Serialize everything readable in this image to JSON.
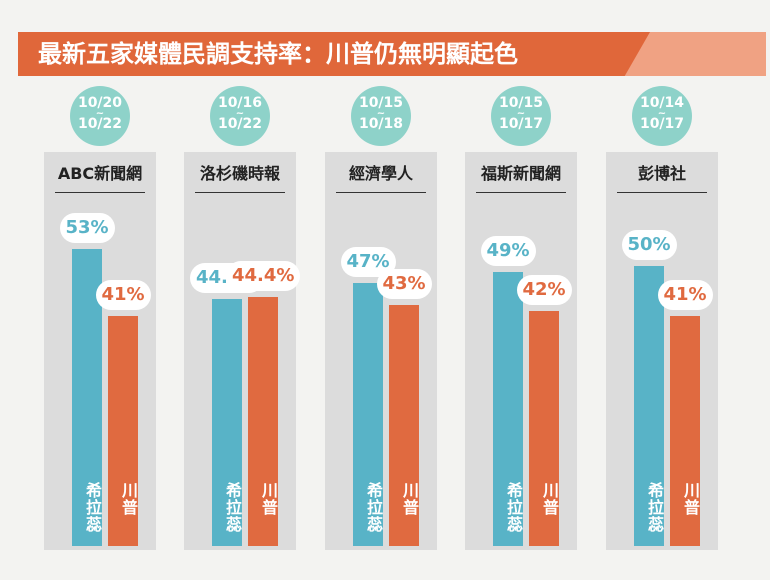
{
  "title": "最新五家媒體民調支持率：川普仍無明顯起色",
  "colors": {
    "clinton": "#58b3c7",
    "trump": "#e06a40",
    "banner": "#e0673a",
    "badge": "#8ed2c9"
  },
  "chart_data": {
    "type": "bar",
    "title": "最新五家媒體民調支持率：川普仍無明顯起色",
    "ylabel": "",
    "categories": [
      "ABC新聞網",
      "洛杉磯時報",
      "經濟學人",
      "福斯新聞網",
      "彭博社"
    ],
    "dates": [
      {
        "from": "10/20",
        "sep": "~",
        "to": "10/22"
      },
      {
        "from": "10/16",
        "sep": "~",
        "to": "10/22"
      },
      {
        "from": "10/15",
        "sep": "~",
        "to": "10/18"
      },
      {
        "from": "10/15",
        "sep": "~",
        "to": "10/17"
      },
      {
        "from": "10/14",
        "sep": "~",
        "to": "10/17"
      }
    ],
    "series": [
      {
        "name": "希拉蕊",
        "values": [
          53,
          44.1,
          47,
          49,
          50
        ],
        "labels": [
          "53%",
          "44.1%",
          "47%",
          "49%",
          "50%"
        ]
      },
      {
        "name": "川普",
        "values": [
          41,
          44.4,
          43,
          42,
          41
        ],
        "labels": [
          "41%",
          "44.4%",
          "43%",
          "42%",
          "41%"
        ]
      }
    ],
    "ylim": [
      0,
      60
    ],
    "grid": false,
    "legend": "none"
  }
}
